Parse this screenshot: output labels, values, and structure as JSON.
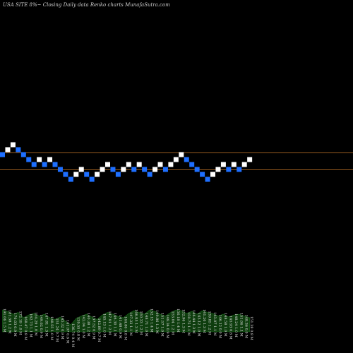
{
  "header": {
    "title": "USA SITE 8%~  Closing Daily data  Renko  charts MunafaSutra.com"
  },
  "colors": {
    "up_brick": "#ffffff",
    "down_brick": "#1e6fff",
    "level_line": "#c8782a",
    "volume_fill": "#0e3d0e",
    "volume_edge": "#1a6a1a",
    "label_text": "#e0e0e0"
  },
  "chart_data": {
    "type": "renko",
    "brick_directions": [
      "down",
      "up",
      "up",
      "down",
      "down",
      "down",
      "down",
      "up",
      "down",
      "up",
      "down",
      "down",
      "down",
      "down",
      "up",
      "up",
      "down",
      "down",
      "up",
      "up",
      "up",
      "down",
      "down",
      "up",
      "up",
      "down",
      "up",
      "down",
      "down",
      "up",
      "up",
      "down",
      "up",
      "up",
      "up",
      "down",
      "down",
      "down",
      "down",
      "down",
      "up",
      "up",
      "up",
      "down",
      "up",
      "down",
      "up",
      "up"
    ],
    "reference_levels": [
      "upper",
      "lower"
    ],
    "volume": {
      "values": [
        0.62,
        0.58,
        0.5,
        0.55,
        0.4,
        0.48,
        0.52,
        0.45,
        0.5,
        0.4,
        0.35,
        0.42,
        0.3,
        0.2,
        0.38,
        0.45,
        0.5,
        0.42,
        0.35,
        0.48,
        0.55,
        0.5,
        0.44,
        0.4,
        0.52,
        0.6,
        0.55,
        0.5,
        0.62,
        0.58,
        0.5,
        0.45,
        0.55,
        0.62,
        0.6,
        0.52,
        0.58,
        0.5,
        0.6,
        0.55,
        0.52,
        0.45,
        0.5,
        0.42,
        0.48,
        0.5,
        0.45,
        0.4
      ],
      "labels": [
        "191.06 1.5 M",
        "181.58 1.2 M",
        "176.03 0.9 M",
        "172.19 1.0 M",
        "168.47 0.8 M",
        "162.73 1.1 M",
        "154.29 1.0 M",
        "149.62 0.9 M",
        "147.81 1.3 M",
        "148.55 1.0 M",
        "151.24 0.7 M",
        "145.32 0.9 M",
        "141.07 0.6 M",
        "136.74 0.4 M",
        "139.55 0.8 M",
        "142.04 1.0 M",
        "140.38 1.2 M",
        "137.52 0.9 M",
        "142.89 0.7 M",
        "145.13 1.0 M",
        "147.91 1.2 M",
        "146.30 1.1 M",
        "141.48 0.9 M",
        "144.86 0.8 M",
        "147.22 1.1 M",
        "146.95 1.3 M",
        "150.33 1.2 M",
        "148.71 1.0 M",
        "152.15 1.4 M",
        "149.86 1.3 M",
        "151.57 1.0 M",
        "148.34 0.9 M",
        "153.04 1.2 M",
        "156.18 1.4 M",
        "152.96 1.3 M",
        "150.75 1.1 M",
        "146.44 1.3 M",
        "143.12 1.0 M",
        "141.26 1.3 M",
        "139.85 1.2 M",
        "143.07 1.1 M",
        "146.12 0.9 M",
        "148.58 1.0 M",
        "145.93 0.8 M",
        "148.24 1.0 M",
        "151.06 1.1 M",
        "148.36 0.9 M",
        "151.38 0.8 M"
      ]
    }
  }
}
